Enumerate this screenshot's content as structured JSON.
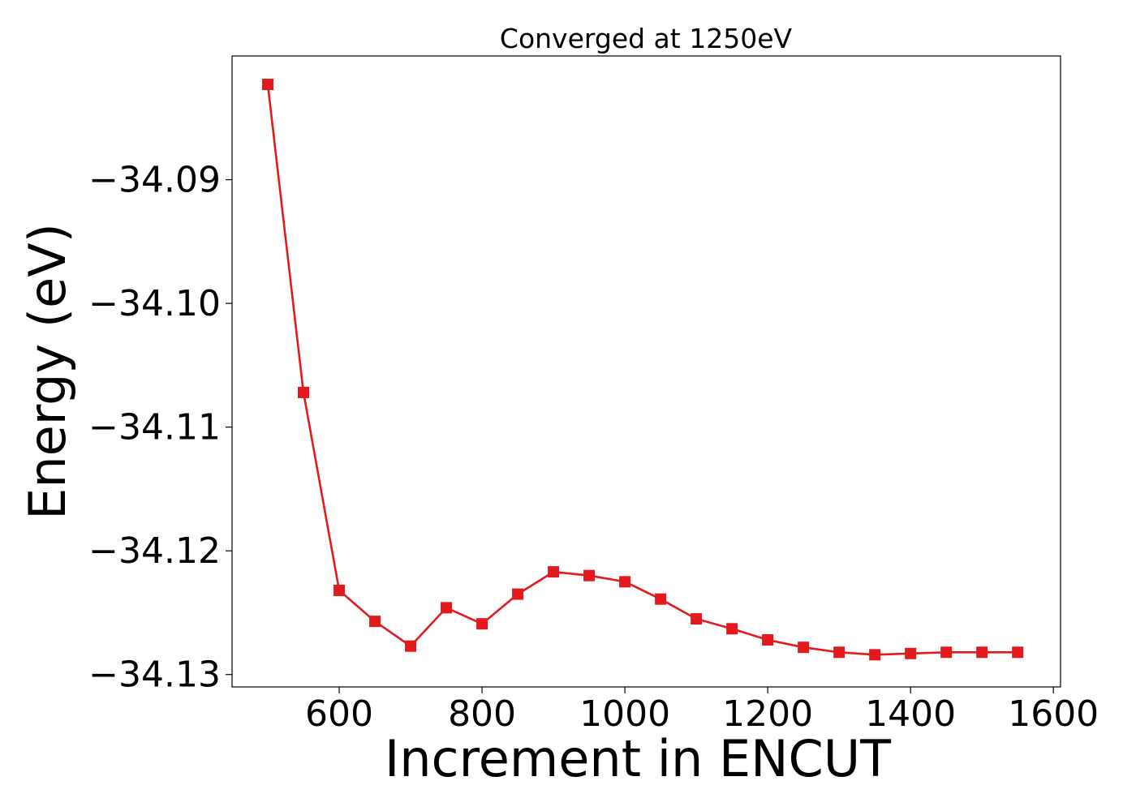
{
  "chart_data": {
    "type": "line",
    "title": "Converged at 1250eV",
    "xlabel": "Increment in ENCUT",
    "ylabel": "Energy (eV)",
    "xlim": [
      450,
      1610
    ],
    "ylim": [
      -34.131,
      -34.08
    ],
    "x_ticks": [
      600,
      800,
      1000,
      1200,
      1400,
      1600
    ],
    "x_tick_labels": [
      "600",
      "800",
      "1000",
      "1200",
      "1400",
      "1600"
    ],
    "y_ticks": [
      -34.09,
      -34.1,
      -34.11,
      -34.12,
      -34.13
    ],
    "y_tick_labels": [
      "−34.09",
      "−34.10",
      "−34.11",
      "−34.12",
      "−34.13"
    ],
    "grid": false,
    "marker": "square",
    "color": "#e31a1c",
    "series": [
      {
        "x": [
          500,
          550,
          600,
          650,
          700,
          750,
          800,
          850,
          900,
          950,
          1000,
          1050,
          1100,
          1150,
          1200,
          1250,
          1300,
          1350,
          1400,
          1450,
          1500,
          1550
        ],
        "y": [
          -34.0823,
          -34.1072,
          -34.1232,
          -34.1257,
          -34.1277,
          -34.1246,
          -34.1259,
          -34.1235,
          -34.1217,
          -34.122,
          -34.1225,
          -34.1239,
          -34.1255,
          -34.1263,
          -34.1272,
          -34.1278,
          -34.1282,
          -34.1284,
          -34.1283,
          -34.1282,
          -34.1282,
          -34.1282
        ]
      }
    ]
  }
}
